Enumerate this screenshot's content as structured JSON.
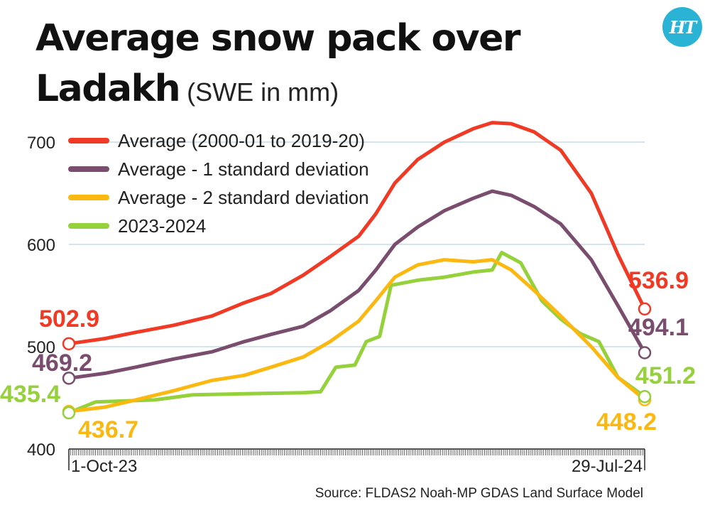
{
  "header": {
    "title_line1": "Average snow pack over",
    "title_line2": "Ladakh",
    "subtitle": "(SWE in mm)",
    "logo_text": "HT",
    "logo_color": "#2bb3d6"
  },
  "source": "Source: FLDAS2 Noah-MP GDAS Land Surface Model",
  "chart_data": {
    "type": "line",
    "title": "Average snow pack over Ladakh",
    "ylabel": "(SWE in mm)",
    "xlabel": "",
    "ylim": [
      400,
      720
    ],
    "yticks": [
      400,
      500,
      600,
      700
    ],
    "xlim": [
      "2023-10-01",
      "2024-07-29"
    ],
    "xtick_labels": [
      "1-Oct-23",
      "29-Jul-24"
    ],
    "grid": "horizontal",
    "legend_position": "top-left",
    "series": [
      {
        "name": "Average (2000-01 to 2019-20)",
        "color": "#f03a25",
        "start_label": "502.9",
        "end_label": "536.9",
        "points": [
          [
            "2023-10-01",
            502.9
          ],
          [
            "2023-10-20",
            508
          ],
          [
            "2023-11-05",
            514
          ],
          [
            "2023-11-25",
            521
          ],
          [
            "2023-12-15",
            530
          ],
          [
            "2024-01-01",
            543
          ],
          [
            "2024-01-15",
            552
          ],
          [
            "2024-02-01",
            570
          ],
          [
            "2024-02-15",
            588
          ],
          [
            "2024-03-01",
            608
          ],
          [
            "2024-03-10",
            630
          ],
          [
            "2024-03-20",
            660
          ],
          [
            "2024-04-01",
            683
          ],
          [
            "2024-04-15",
            700
          ],
          [
            "2024-04-30",
            713
          ],
          [
            "2024-05-10",
            719
          ],
          [
            "2024-05-20",
            718
          ],
          [
            "2024-06-01",
            710
          ],
          [
            "2024-06-15",
            692
          ],
          [
            "2024-07-01",
            650
          ],
          [
            "2024-07-15",
            590
          ],
          [
            "2024-07-29",
            536.9
          ]
        ]
      },
      {
        "name": "Average - 1 standard deviation",
        "color": "#7a4d6e",
        "start_label": "469.2",
        "end_label": "494.1",
        "points": [
          [
            "2023-10-01",
            469.2
          ],
          [
            "2023-10-20",
            474
          ],
          [
            "2023-11-05",
            480
          ],
          [
            "2023-11-25",
            488
          ],
          [
            "2023-12-15",
            495
          ],
          [
            "2024-01-01",
            505
          ],
          [
            "2024-01-15",
            512
          ],
          [
            "2024-02-01",
            520
          ],
          [
            "2024-02-15",
            535
          ],
          [
            "2024-03-01",
            555
          ],
          [
            "2024-03-10",
            575
          ],
          [
            "2024-03-20",
            600
          ],
          [
            "2024-04-01",
            617
          ],
          [
            "2024-04-15",
            633
          ],
          [
            "2024-04-30",
            645
          ],
          [
            "2024-05-10",
            652
          ],
          [
            "2024-05-20",
            648
          ],
          [
            "2024-06-01",
            637
          ],
          [
            "2024-06-15",
            620
          ],
          [
            "2024-07-01",
            585
          ],
          [
            "2024-07-15",
            540
          ],
          [
            "2024-07-29",
            494.1
          ]
        ]
      },
      {
        "name": "Average - 2 standard deviation",
        "color": "#fbb811",
        "start_label": "436.7",
        "end_label": "448.2",
        "points": [
          [
            "2023-10-01",
            436.7
          ],
          [
            "2023-10-20",
            441
          ],
          [
            "2023-11-05",
            448
          ],
          [
            "2023-11-25",
            457
          ],
          [
            "2023-12-15",
            467
          ],
          [
            "2024-01-01",
            472
          ],
          [
            "2024-01-15",
            480
          ],
          [
            "2024-02-01",
            490
          ],
          [
            "2024-02-15",
            505
          ],
          [
            "2024-03-01",
            525
          ],
          [
            "2024-03-10",
            545
          ],
          [
            "2024-03-20",
            568
          ],
          [
            "2024-04-01",
            580
          ],
          [
            "2024-04-15",
            585
          ],
          [
            "2024-04-30",
            583
          ],
          [
            "2024-05-10",
            585
          ],
          [
            "2024-05-20",
            575
          ],
          [
            "2024-06-01",
            555
          ],
          [
            "2024-06-15",
            530
          ],
          [
            "2024-07-01",
            500
          ],
          [
            "2024-07-15",
            470
          ],
          [
            "2024-07-29",
            448.2
          ]
        ]
      },
      {
        "name": "2023-2024",
        "color": "#95d13b",
        "start_label": "435.4",
        "end_label": "451.2",
        "points": [
          [
            "2023-10-01",
            435.4
          ],
          [
            "2023-10-15",
            446
          ],
          [
            "2023-11-15",
            448
          ],
          [
            "2023-12-05",
            453
          ],
          [
            "2024-01-01",
            454
          ],
          [
            "2024-02-01",
            455
          ],
          [
            "2024-02-10",
            456
          ],
          [
            "2024-02-18",
            480
          ],
          [
            "2024-02-28",
            482
          ],
          [
            "2024-03-05",
            505
          ],
          [
            "2024-03-12",
            510
          ],
          [
            "2024-03-18",
            560
          ],
          [
            "2024-04-01",
            565
          ],
          [
            "2024-04-15",
            568
          ],
          [
            "2024-04-30",
            573
          ],
          [
            "2024-05-10",
            575
          ],
          [
            "2024-05-15",
            592
          ],
          [
            "2024-05-25",
            582
          ],
          [
            "2024-06-05",
            545
          ],
          [
            "2024-06-15",
            527
          ],
          [
            "2024-06-25",
            513
          ],
          [
            "2024-07-05",
            505
          ],
          [
            "2024-07-15",
            470
          ],
          [
            "2024-07-29",
            451.2
          ]
        ]
      }
    ]
  }
}
